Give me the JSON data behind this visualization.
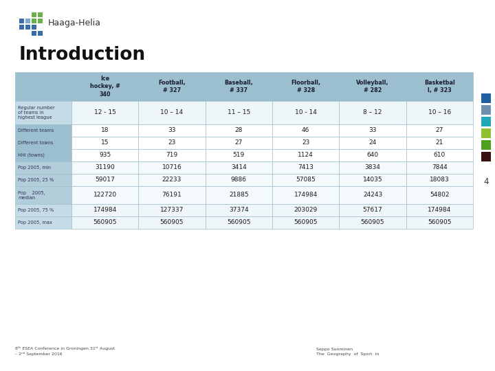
{
  "title": "Introduction",
  "header_bg": "#9bbfcf",
  "row_label_bg_dark": "#9bbfcf",
  "row_label_bg_light": "#c5dce7",
  "data_bg_light": "#eef6fa",
  "data_bg_white": "#f8fcfe",
  "col_headers": [
    "Ice\nhockey, #\n340",
    "Football,\n# 327",
    "Baseball,\n# 337",
    "Floorball,\n# 328",
    "Volleyball,\n# 282",
    "Basketbal\nl, # 323"
  ],
  "row_labels": [
    "Regular number\nof teams in\nhighest league",
    "Different teams",
    "Different towns",
    "HHI (towns)",
    "Pop 2005, min",
    "Pop 2005, 25 %",
    "Pop    2005,\nmedian",
    "Pop 2005, 75 %",
    "Pop 2005, max"
  ],
  "table_data": [
    [
      "12 - 15",
      "10 – 14",
      "11 – 15",
      "10 - 14",
      "8 – 12",
      "10 – 16"
    ],
    [
      "18",
      "33",
      "28",
      "46",
      "33",
      "27"
    ],
    [
      "15",
      "23",
      "27",
      "23",
      "24",
      "21"
    ],
    [
      "935",
      "719",
      "519",
      "1124",
      "640",
      "610"
    ],
    [
      "31190",
      "10716",
      "3414",
      "7413",
      "3834",
      "7844"
    ],
    [
      "59017",
      "22233",
      "9886",
      "57085",
      "14035",
      "18083"
    ],
    [
      "122720",
      "76191",
      "21885",
      "174984",
      "24243",
      "54802"
    ],
    [
      "174984",
      "127337",
      "37374",
      "203029",
      "57617",
      "174984"
    ],
    [
      "560905",
      "560905",
      "560905",
      "560905",
      "560905",
      "560905"
    ]
  ],
  "footer_left": "8ᵗʰ ESEA Conference in Groningen 31ˢᵗ August\n– 2ⁿᵈ September 2016",
  "footer_right": "Seppo Suominen\nThe  Geography  of  Sport  in",
  "page_number": "4",
  "logo_blue": "#3a6ea8",
  "logo_lblue": "#7aaac8",
  "logo_green": "#6ab04c",
  "side_colors": [
    "#2060a0",
    "#7090b0",
    "#20a8b8",
    "#90c030",
    "#50a020",
    "#3a1010"
  ],
  "bg_color": "#ffffff",
  "cell_edge": "#a0bfcf",
  "row_label_text": "#303050",
  "data_text": "#1a1a1a",
  "header_text": "#1a1a2e"
}
